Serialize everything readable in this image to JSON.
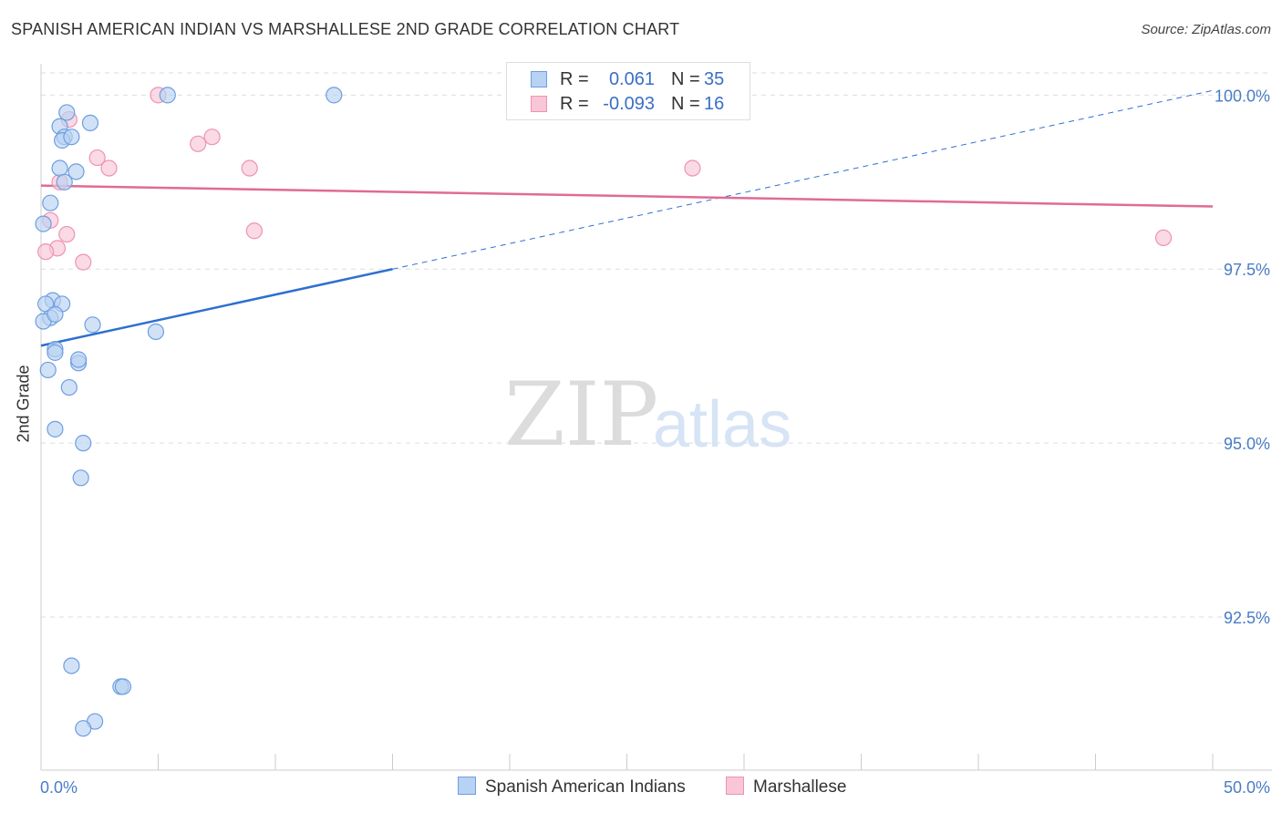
{
  "title": "SPANISH AMERICAN INDIAN VS MARSHALLESE 2ND GRADE CORRELATION CHART",
  "source": "Source: ZipAtlas.com",
  "watermark": {
    "part1": "ZIP",
    "part2": "atlas"
  },
  "colors": {
    "blue_fill": "#b8d2f3",
    "blue_stroke": "#6d9ee0",
    "blue_line": "#2e6fd0",
    "pink_fill": "#f8c6d6",
    "pink_stroke": "#ee93b2",
    "pink_line": "#e06b94",
    "axis_label": "#4a7cc7",
    "grid": "#dddddd"
  },
  "stats": {
    "rows": [
      {
        "r_label": "R =",
        "r_value": "0.061",
        "n_label": "N =",
        "n_value": "35"
      },
      {
        "r_label": "R =",
        "r_value": "-0.093",
        "n_label": "N =",
        "n_value": "16"
      }
    ]
  },
  "legend": {
    "items": [
      "Spanish American Indians",
      "Marshallese"
    ]
  },
  "chart_data": {
    "type": "scatter",
    "title": "SPANISH AMERICAN INDIAN VS MARSHALLESE 2ND GRADE CORRELATION CHART",
    "xlabel": "",
    "ylabel": "2nd Grade",
    "xlim": [
      0,
      50
    ],
    "ylim": [
      90.3,
      100.45
    ],
    "x_tick_labels": [
      "0.0%",
      "50.0%"
    ],
    "y_ticks": [
      92.5,
      95.0,
      97.5,
      100.0
    ],
    "y_tick_labels": [
      "92.5%",
      "95.0%",
      "97.5%",
      "100.0%"
    ],
    "series": [
      {
        "name": "Spanish American Indians",
        "x": [
          5.4,
          12.5,
          1.1,
          2.1,
          0.8,
          1.0,
          0.9,
          1.3,
          0.8,
          1.5,
          1.0,
          0.4,
          0.1,
          0.5,
          0.2,
          0.4,
          0.1,
          0.9,
          0.6,
          2.2,
          0.6,
          4.9,
          0.6,
          1.6,
          1.6,
          0.3,
          1.2,
          0.6,
          1.8,
          1.7,
          1.3,
          3.4,
          3.5,
          2.3,
          1.8
        ],
        "y": [
          100.0,
          100.0,
          99.75,
          99.6,
          99.55,
          99.4,
          99.35,
          99.4,
          98.95,
          98.9,
          98.75,
          98.45,
          98.15,
          97.05,
          97.0,
          96.8,
          96.75,
          97.0,
          96.85,
          96.7,
          96.35,
          96.6,
          96.3,
          96.15,
          96.2,
          96.05,
          95.8,
          95.2,
          95.0,
          94.5,
          91.8,
          91.5,
          91.5,
          91.0,
          90.9
        ]
      },
      {
        "name": "Marshallese",
        "x": [
          5.0,
          1.2,
          6.7,
          7.3,
          2.4,
          2.9,
          8.9,
          27.8,
          0.8,
          0.4,
          9.1,
          1.1,
          0.7,
          1.8,
          0.2,
          47.9
        ],
        "y": [
          100.0,
          99.65,
          99.3,
          99.4,
          99.1,
          98.95,
          98.95,
          98.95,
          98.75,
          98.2,
          98.05,
          98.0,
          97.8,
          97.6,
          97.75,
          97.95
        ]
      }
    ],
    "trend_lines": [
      {
        "series": "Spanish American Indians",
        "x": [
          0,
          15
        ],
        "y": [
          96.4,
          97.5
        ],
        "dashed_extension_to_x": 50
      },
      {
        "series": "Marshallese",
        "x": [
          0,
          50
        ],
        "y": [
          98.7,
          98.4
        ]
      }
    ]
  }
}
